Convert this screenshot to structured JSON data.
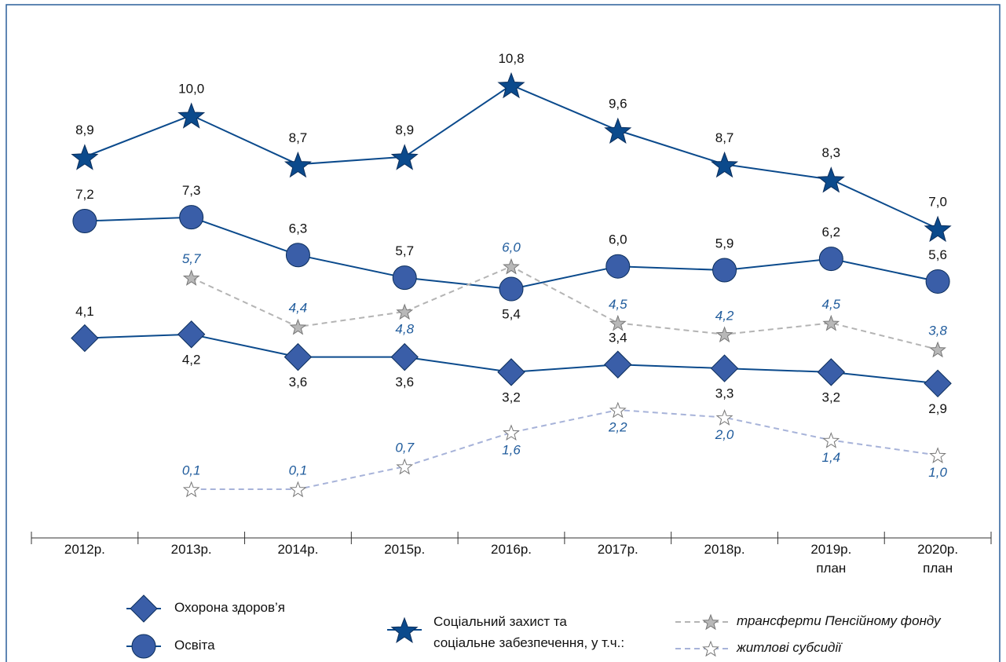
{
  "chart_data": {
    "type": "line",
    "categories": [
      "2012р.",
      "2013р.",
      "2014р.",
      "2015р.",
      "2016р.",
      "2017р.",
      "2018р.",
      "2019р.\nплан",
      "2020р.\nплан"
    ],
    "ylim": [
      0,
      12
    ],
    "series": [
      {
        "name": "Соціальний захист та\nсоціальне забезпечення, у т.ч.:",
        "color": "#0b4a8c",
        "marker": "star",
        "marker_fill": "#0b4a8c",
        "dashed": false,
        "label_style": "normal",
        "values": [
          8.9,
          10.0,
          8.7,
          8.9,
          10.8,
          9.6,
          8.7,
          8.3,
          7.0
        ],
        "value_labels": [
          "8,9",
          "10,0",
          "8,7",
          "8,9",
          "10,8",
          "9,6",
          "8,7",
          "8,3",
          "7,0"
        ]
      },
      {
        "name": "Освіта",
        "color": "#0b4a8c",
        "marker": "circle",
        "marker_fill": "#3a5ea8",
        "dashed": false,
        "label_style": "normal",
        "values": [
          7.2,
          7.3,
          6.3,
          5.7,
          5.4,
          6.0,
          5.9,
          6.2,
          5.6
        ],
        "value_labels": [
          "7,2",
          "7,3",
          "6,3",
          "5,7",
          "5,4",
          "6,0",
          "5,9",
          "6,2",
          "5,6"
        ]
      },
      {
        "name": "Охорона здоров’я",
        "color": "#0b4a8c",
        "marker": "diamond",
        "marker_fill": "#3a5ea8",
        "dashed": false,
        "label_style": "normal",
        "values": [
          4.1,
          4.2,
          3.6,
          3.6,
          3.2,
          3.4,
          3.3,
          3.2,
          2.9
        ],
        "value_labels": [
          "4,1",
          "4,2",
          "3,6",
          "3,6",
          "3,2",
          "3,4",
          "3,3",
          "3,2",
          "2,9"
        ]
      },
      {
        "name": "трансферти Пенсійному фонду",
        "color": "#b4b4b4",
        "marker": "smallstar",
        "marker_fill": "#b8b8b8",
        "dashed": true,
        "label_style": "italic",
        "values": [
          null,
          5.7,
          4.4,
          4.8,
          6.0,
          4.5,
          4.2,
          4.5,
          3.8
        ],
        "value_labels": [
          null,
          "5,7",
          "4,4",
          "4,8",
          "6,0",
          "4,5",
          "4,2",
          "4,5",
          "3,8"
        ]
      },
      {
        "name": "житлові субсидії",
        "color": "#a7b3d9",
        "marker": "smallstar",
        "marker_fill": "#ffffff",
        "dashed": true,
        "label_style": "italic",
        "values": [
          null,
          0.1,
          0.1,
          0.7,
          1.6,
          2.2,
          2.0,
          1.4,
          1.0
        ],
        "value_labels": [
          null,
          "0,1",
          "0,1",
          "0,7",
          "1,6",
          "2,2",
          "2,0",
          "1,4",
          "1,0"
        ]
      }
    ]
  }
}
